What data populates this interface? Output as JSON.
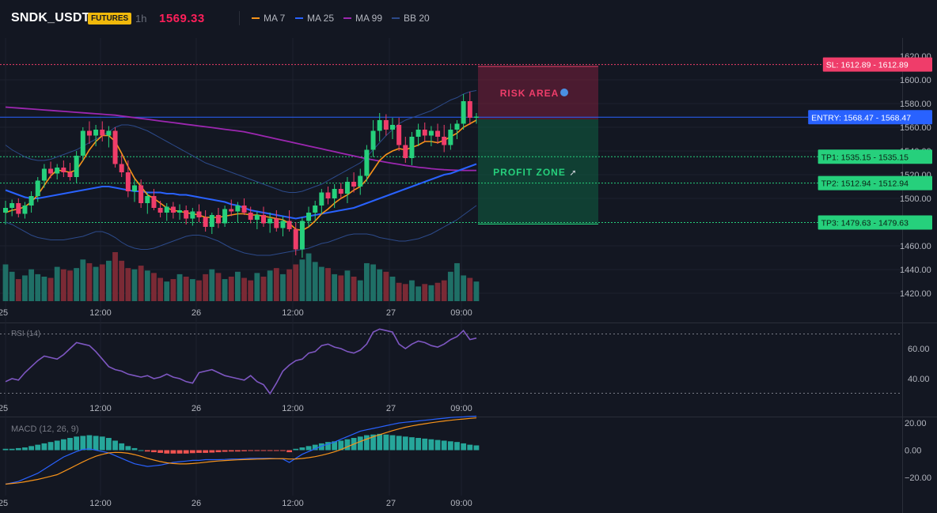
{
  "header": {
    "symbol": "SNDK_USDT",
    "badge": "FUTURES",
    "timeframe": "1h",
    "last_price": "1569.33",
    "legend": [
      {
        "label": "MA 7",
        "color": "#f7931a"
      },
      {
        "label": "MA 25",
        "color": "#2962ff"
      },
      {
        "label": "MA 99",
        "color": "#9c27b0"
      },
      {
        "label": "BB 20",
        "color": "#2c4a8a"
      }
    ]
  },
  "colors": {
    "up": "#26d07c",
    "down": "#ef3d6a",
    "vol_up": "#1f6f66",
    "vol_down": "#7a2a35"
  },
  "time_axis": {
    "labels": [
      "25",
      "12:00",
      "26",
      "12:00",
      "27",
      "09:00"
    ]
  },
  "chart_data": [
    {
      "type": "candlestick",
      "title": "SNDK_USDT 1h",
      "ylim": [
        1412,
        1625
      ],
      "y_ticks": [
        "1620.00",
        "1600.00",
        "1580.00",
        "1560.00",
        "1540.00",
        "1520.00",
        "1500.00",
        "1460.00",
        "1440.00",
        "1420.00"
      ],
      "ohlc": [
        [
          1488,
          1498,
          1478,
          1492
        ],
        [
          1492,
          1499,
          1485,
          1496
        ],
        [
          1496,
          1500,
          1484,
          1487
        ],
        [
          1487,
          1497,
          1483,
          1494
        ],
        [
          1494,
          1506,
          1488,
          1502
        ],
        [
          1502,
          1518,
          1497,
          1515
        ],
        [
          1515,
          1529,
          1509,
          1525
        ],
        [
          1525,
          1531,
          1517,
          1521
        ],
        [
          1521,
          1529,
          1516,
          1526
        ],
        [
          1526,
          1532,
          1518,
          1522
        ],
        [
          1522,
          1530,
          1515,
          1518
        ],
        [
          1518,
          1540,
          1513,
          1536
        ],
        [
          1536,
          1560,
          1532,
          1557
        ],
        [
          1557,
          1565,
          1546,
          1553
        ],
        [
          1553,
          1562,
          1544,
          1558
        ],
        [
          1558,
          1565,
          1548,
          1553
        ],
        [
          1553,
          1561,
          1543,
          1557
        ],
        [
          1557,
          1560,
          1526,
          1529
        ],
        [
          1529,
          1537,
          1518,
          1522
        ],
        [
          1522,
          1532,
          1501,
          1506
        ],
        [
          1506,
          1516,
          1497,
          1511
        ],
        [
          1511,
          1516,
          1492,
          1496
        ],
        [
          1496,
          1505,
          1487,
          1502
        ],
        [
          1502,
          1508,
          1490,
          1492
        ],
        [
          1492,
          1498,
          1484,
          1488
        ],
        [
          1488,
          1496,
          1481,
          1493
        ],
        [
          1493,
          1497,
          1483,
          1488
        ],
        [
          1488,
          1495,
          1482,
          1490
        ],
        [
          1490,
          1494,
          1478,
          1483
        ],
        [
          1483,
          1492,
          1477,
          1489
        ],
        [
          1489,
          1495,
          1480,
          1484
        ],
        [
          1484,
          1490,
          1472,
          1476
        ],
        [
          1476,
          1488,
          1470,
          1486
        ],
        [
          1486,
          1492,
          1475,
          1479
        ],
        [
          1479,
          1494,
          1476,
          1491
        ],
        [
          1491,
          1499,
          1485,
          1489
        ],
        [
          1489,
          1497,
          1480,
          1494
        ],
        [
          1494,
          1500,
          1486,
          1488
        ],
        [
          1488,
          1493,
          1479,
          1482
        ],
        [
          1482,
          1489,
          1474,
          1486
        ],
        [
          1486,
          1493,
          1476,
          1479
        ],
        [
          1479,
          1488,
          1471,
          1483
        ],
        [
          1483,
          1490,
          1472,
          1475
        ],
        [
          1475,
          1485,
          1468,
          1481
        ],
        [
          1481,
          1490,
          1472,
          1474
        ],
        [
          1474,
          1480,
          1452,
          1457
        ],
        [
          1457,
          1484,
          1450,
          1481
        ],
        [
          1481,
          1493,
          1476,
          1488
        ],
        [
          1488,
          1498,
          1481,
          1494
        ],
        [
          1494,
          1508,
          1487,
          1505
        ],
        [
          1505,
          1510,
          1495,
          1500
        ],
        [
          1500,
          1512,
          1492,
          1508
        ],
        [
          1508,
          1513,
          1500,
          1504
        ],
        [
          1504,
          1518,
          1496,
          1514
        ],
        [
          1514,
          1522,
          1505,
          1510
        ],
        [
          1510,
          1525,
          1503,
          1519
        ],
        [
          1519,
          1545,
          1514,
          1541
        ],
        [
          1541,
          1566,
          1535,
          1557
        ],
        [
          1557,
          1572,
          1548,
          1566
        ],
        [
          1566,
          1571,
          1553,
          1558
        ],
        [
          1558,
          1568,
          1550,
          1562
        ],
        [
          1562,
          1568,
          1540,
          1545
        ],
        [
          1545,
          1552,
          1530,
          1534
        ],
        [
          1534,
          1556,
          1528,
          1552
        ],
        [
          1552,
          1563,
          1544,
          1558
        ],
        [
          1558,
          1564,
          1548,
          1553
        ],
        [
          1553,
          1561,
          1544,
          1557
        ],
        [
          1557,
          1563,
          1546,
          1552
        ],
        [
          1552,
          1562,
          1539,
          1545
        ],
        [
          1545,
          1563,
          1541,
          1558
        ],
        [
          1558,
          1566,
          1550,
          1563
        ],
        [
          1563,
          1588,
          1558,
          1582
        ],
        [
          1582,
          1590,
          1562,
          1568
        ],
        [
          1568,
          1572,
          1563,
          1569
        ]
      ],
      "volume": [
        30,
        24,
        18,
        21,
        26,
        22,
        20,
        19,
        28,
        26,
        25,
        27,
        34,
        31,
        28,
        30,
        33,
        40,
        33,
        27,
        26,
        29,
        25,
        23,
        19,
        16,
        18,
        22,
        20,
        18,
        17,
        22,
        26,
        23,
        18,
        20,
        24,
        19,
        17,
        23,
        20,
        25,
        27,
        22,
        26,
        30,
        34,
        39,
        32,
        28,
        27,
        22,
        21,
        25,
        20,
        17,
        31,
        30,
        26,
        24,
        20,
        15,
        14,
        17,
        12,
        14,
        13,
        15,
        17,
        24,
        31,
        21,
        19,
        16
      ],
      "ma7": [
        1488,
        1490,
        1491,
        1493,
        1497,
        1503,
        1511,
        1519,
        1524,
        1523,
        1522,
        1524,
        1532,
        1541,
        1548,
        1553,
        1553,
        1548,
        1538,
        1527,
        1517,
        1510,
        1503,
        1500,
        1496,
        1492,
        1490,
        1489,
        1488,
        1487,
        1486,
        1484,
        1484,
        1484,
        1485,
        1486,
        1487,
        1487,
        1486,
        1486,
        1485,
        1484,
        1483,
        1482,
        1479,
        1474,
        1473,
        1476,
        1481,
        1487,
        1491,
        1496,
        1500,
        1503,
        1507,
        1510,
        1516,
        1524,
        1532,
        1537,
        1540,
        1542,
        1541,
        1543,
        1545,
        1548,
        1548,
        1547,
        1549,
        1552,
        1555,
        1560,
        1563,
        1566
      ],
      "ma25": [
        1507,
        1505,
        1503,
        1501,
        1500,
        1500,
        1501,
        1502,
        1503,
        1504,
        1505,
        1506,
        1507,
        1508,
        1509,
        1510,
        1510,
        1509,
        1508,
        1507,
        1506,
        1506,
        1505,
        1505,
        1505,
        1504,
        1504,
        1503,
        1503,
        1502,
        1501,
        1500,
        1499,
        1498,
        1497,
        1495,
        1494,
        1492,
        1490,
        1489,
        1488,
        1487,
        1486,
        1485,
        1484,
        1483,
        1484,
        1485,
        1486,
        1487,
        1488,
        1489,
        1490,
        1491,
        1492,
        1494,
        1496,
        1498,
        1500,
        1502,
        1504,
        1506,
        1508,
        1510,
        1512,
        1514,
        1516,
        1518,
        1520,
        1521,
        1523,
        1525,
        1527,
        1529
      ],
      "ma99": [
        1577,
        1576.6,
        1576.2,
        1575.8,
        1575.4,
        1575,
        1574.6,
        1574.2,
        1573.8,
        1573.4,
        1573,
        1572.6,
        1572.2,
        1571.8,
        1571.4,
        1571,
        1570.6,
        1570.2,
        1569.5,
        1568.8,
        1568.1,
        1567.4,
        1566.7,
        1566,
        1565.3,
        1564.6,
        1563.9,
        1563.2,
        1562.5,
        1561.8,
        1561.1,
        1560.4,
        1559.7,
        1559,
        1558.3,
        1557.6,
        1556.9,
        1556.2,
        1555,
        1553.8,
        1552.6,
        1551.4,
        1550.2,
        1549,
        1547.8,
        1546.6,
        1545.4,
        1544.2,
        1543,
        1541.8,
        1540.6,
        1539.4,
        1538.2,
        1537,
        1535.8,
        1534.6,
        1533.5,
        1532.5,
        1531.5,
        1530.5,
        1529.6,
        1528.7,
        1527.8,
        1527,
        1526.3,
        1525.7,
        1525.1,
        1524.6,
        1524.2,
        1523.9,
        1523.7,
        1523.6,
        1523.6,
        1523.6
      ],
      "bb_upper": [
        1545,
        1541,
        1538,
        1535,
        1533,
        1532,
        1532,
        1533,
        1535,
        1537,
        1539,
        1541,
        1544,
        1547,
        1550,
        1553,
        1556,
        1560,
        1562,
        1562,
        1561,
        1559,
        1557,
        1554,
        1551,
        1548,
        1545,
        1542,
        1539,
        1536,
        1533,
        1530,
        1528,
        1526,
        1524,
        1522,
        1520,
        1518,
        1516,
        1514,
        1512,
        1510,
        1508,
        1506,
        1505,
        1505,
        1506,
        1508,
        1510,
        1512,
        1515,
        1518,
        1521,
        1524,
        1527,
        1530,
        1535,
        1541,
        1547,
        1553,
        1558,
        1563,
        1566,
        1568,
        1570,
        1572,
        1574,
        1577,
        1580,
        1583,
        1585,
        1588,
        1590,
        1591
      ],
      "bb_lower": [
        1480,
        1478,
        1475,
        1472,
        1469,
        1467,
        1466,
        1465,
        1465,
        1465,
        1466,
        1467,
        1468,
        1470,
        1472,
        1472,
        1470,
        1467,
        1463,
        1460,
        1458,
        1457,
        1457,
        1458,
        1460,
        1462,
        1464,
        1466,
        1468,
        1469,
        1469,
        1468,
        1466,
        1464,
        1461,
        1458,
        1456,
        1454,
        1453,
        1452,
        1452,
        1452,
        1453,
        1454,
        1455,
        1456,
        1457,
        1458,
        1460,
        1462,
        1463,
        1465,
        1467,
        1469,
        1470,
        1470,
        1470,
        1469,
        1467,
        1466,
        1465,
        1464,
        1464,
        1465,
        1466,
        1468,
        1470,
        1473,
        1476,
        1479,
        1482,
        1486,
        1490,
        1494
      ]
    },
    {
      "type": "line",
      "title": "RSI (14)",
      "ylim": [
        28,
        78
      ],
      "y_ticks": [
        "60.00",
        "40.00"
      ],
      "values": [
        38,
        40,
        39,
        44,
        48,
        52,
        55,
        54,
        53,
        56,
        60,
        64,
        63,
        62,
        58,
        53,
        48,
        46,
        45,
        43,
        42,
        41,
        42,
        40,
        41,
        43,
        41,
        40,
        38,
        37,
        44,
        45,
        46,
        44,
        42,
        41,
        40,
        39,
        42,
        38,
        36,
        30,
        37,
        45,
        49,
        52,
        53,
        57,
        58,
        62,
        63,
        61,
        60,
        58,
        57,
        59,
        63,
        71,
        73,
        72,
        71,
        63,
        60,
        63,
        65,
        64,
        62,
        61,
        63,
        66,
        68,
        72,
        66,
        67
      ]
    },
    {
      "type": "bar",
      "title": "MACD (12, 26, 9)",
      "ylim": [
        -30,
        24
      ],
      "y_ticks": [
        "20.00",
        "0.00",
        "−20.00"
      ],
      "histogram": [
        1,
        1,
        1.5,
        2,
        3,
        4,
        5,
        6,
        7,
        8,
        9,
        10,
        10.5,
        11,
        10.5,
        10,
        9,
        7,
        5,
        3,
        1.5,
        0,
        -1,
        -1.5,
        -2,
        -2.5,
        -2.5,
        -2.5,
        -2.5,
        -2.2,
        -2,
        -2,
        -1.8,
        -1.5,
        -1.2,
        -1,
        -1,
        -0.8,
        -0.6,
        -0.6,
        -0.5,
        -0.5,
        -0.5,
        -0.5,
        -1.5,
        1,
        2,
        3,
        4,
        5,
        6,
        6.5,
        7,
        8,
        9,
        10,
        11,
        11.5,
        12,
        11.5,
        11,
        10.5,
        10,
        9.5,
        9,
        8.5,
        8,
        7.5,
        7,
        6.5,
        6,
        5,
        4,
        3.5
      ],
      "macd": [
        -25,
        -24,
        -23,
        -21,
        -19,
        -17,
        -14,
        -11,
        -8,
        -5,
        -3,
        -1,
        0.5,
        1,
        0,
        -1,
        -2,
        -4,
        -6,
        -8,
        -10,
        -11,
        -12,
        -11.5,
        -11,
        -10,
        -9,
        -8.5,
        -8,
        -7.5,
        -7.5,
        -7,
        -7,
        -7,
        -6.8,
        -6.5,
        -6.5,
        -6.3,
        -6,
        -6,
        -6,
        -6,
        -6.2,
        -6.5,
        -9,
        -6,
        -3,
        -1,
        1,
        3,
        4.5,
        6,
        8,
        10,
        12,
        14,
        15,
        16,
        17,
        18,
        19,
        20,
        20.5,
        21,
        21.5,
        22,
        22.5,
        23,
        23.5,
        24,
        24.3,
        24.5,
        24.8,
        25
      ]
    }
  ]
}
